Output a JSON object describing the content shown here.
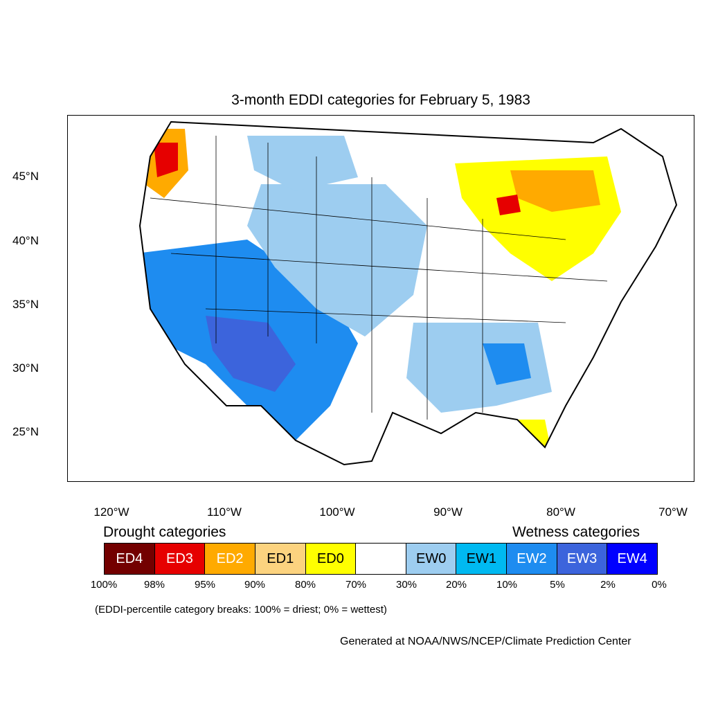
{
  "title": "3-month EDDI categories for February 5, 1983",
  "lat_labels": [
    "45°N",
    "40°N",
    "35°N",
    "30°N",
    "25°N"
  ],
  "lon_labels": [
    "120°W",
    "110°W",
    "100°W",
    "90°W",
    "80°W",
    "70°W"
  ],
  "legend": {
    "drought_heading": "Drought categories",
    "wetness_heading": "Wetness categories",
    "categories": [
      {
        "label": "ED4",
        "color": "#730000",
        "text_color": "#ffffff"
      },
      {
        "label": "ED3",
        "color": "#e60000",
        "text_color": "#ffffff"
      },
      {
        "label": "ED2",
        "color": "#ffaa00",
        "text_color": "#ffffff"
      },
      {
        "label": "ED1",
        "color": "#fcd37f",
        "text_color": "#000000"
      },
      {
        "label": "ED0",
        "color": "#ffff00",
        "text_color": "#000000"
      },
      {
        "label": "",
        "color": "#ffffff",
        "text_color": "#000000"
      },
      {
        "label": "EW0",
        "color": "#9dcdf0",
        "text_color": "#000000"
      },
      {
        "label": "EW1",
        "color": "#00b9f1",
        "text_color": "#000000"
      },
      {
        "label": "EW2",
        "color": "#1e8cf0",
        "text_color": "#ffffff"
      },
      {
        "label": "EW3",
        "color": "#3c64dc",
        "text_color": "#ffffff"
      },
      {
        "label": "EW4",
        "color": "#0000ff",
        "text_color": "#ffffff"
      }
    ],
    "breaks": [
      "100%",
      "98%",
      "95%",
      "90%",
      "80%",
      "70%",
      "30%",
      "20%",
      "10%",
      "5%",
      "2%",
      "0%"
    ],
    "breaks_note": "(EDDI-percentile category breaks: 100% = driest; 0% = wettest)"
  },
  "credit": "Generated at NOAA/NWS/NCEP/Climate Prediction Center"
}
